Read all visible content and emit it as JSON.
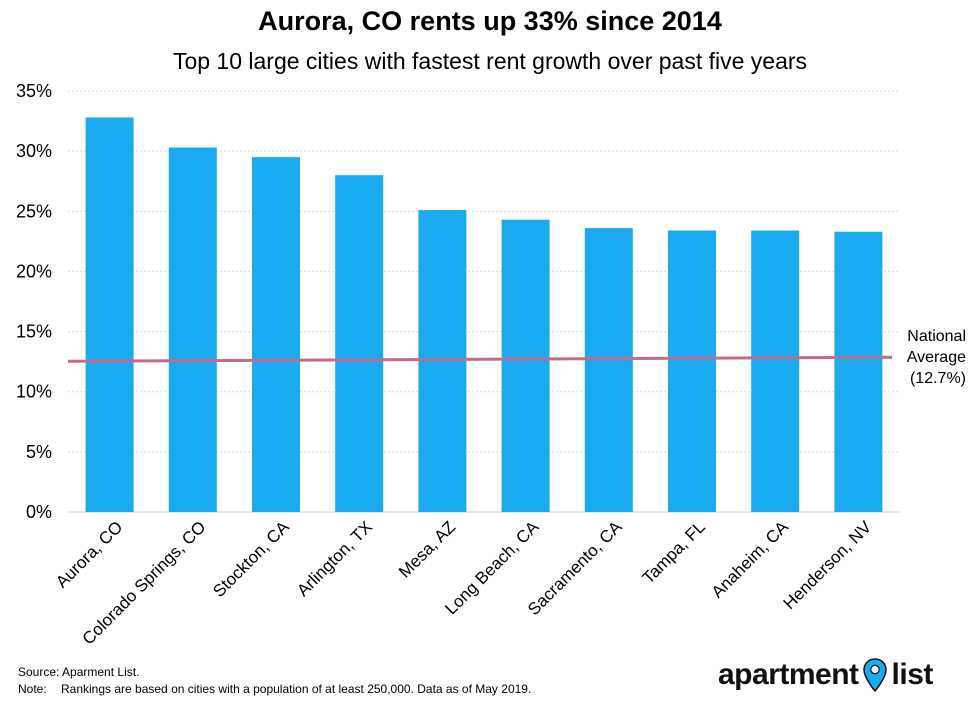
{
  "chart_data": {
    "type": "bar",
    "title": "Aurora, CO rents up 33% since 2014",
    "subtitle": "Top 10 large cities with fastest rent growth over past five years",
    "categories": [
      "Aurora, CO",
      "Colorado Springs, CO",
      "Stockton, CA",
      "Arlington, TX",
      "Mesa, AZ",
      "Long Beach, CA",
      "Sacramento, CA",
      "Tampa, FL",
      "Anaheim, CA",
      "Henderson, NV"
    ],
    "values": [
      32.8,
      30.3,
      29.5,
      28.0,
      25.1,
      24.3,
      23.6,
      23.4,
      23.4,
      23.3
    ],
    "ylim": [
      0,
      35
    ],
    "yticks": [
      "0%",
      "5%",
      "10%",
      "15%",
      "20%",
      "25%",
      "30%",
      "35%"
    ],
    "ytick_values": [
      0,
      5,
      10,
      15,
      20,
      25,
      30,
      35
    ],
    "grid": true,
    "bar_color": "#1aaaf0",
    "reference_line": {
      "value": 12.7,
      "label_lines": [
        "National",
        "Average",
        "(12.7%)"
      ],
      "color": "#c36b8a"
    }
  },
  "footer": {
    "source_label": "Source:",
    "source_text": "Aparment List.",
    "note_label": "Note:",
    "note_text": "Rankings are based on cities with a population of at least 250,000. Data as of May 2019."
  },
  "logo": {
    "word1": "apartment",
    "word2": "list",
    "icon": "location-pin-icon",
    "pin_color": "#1aaaf0"
  }
}
